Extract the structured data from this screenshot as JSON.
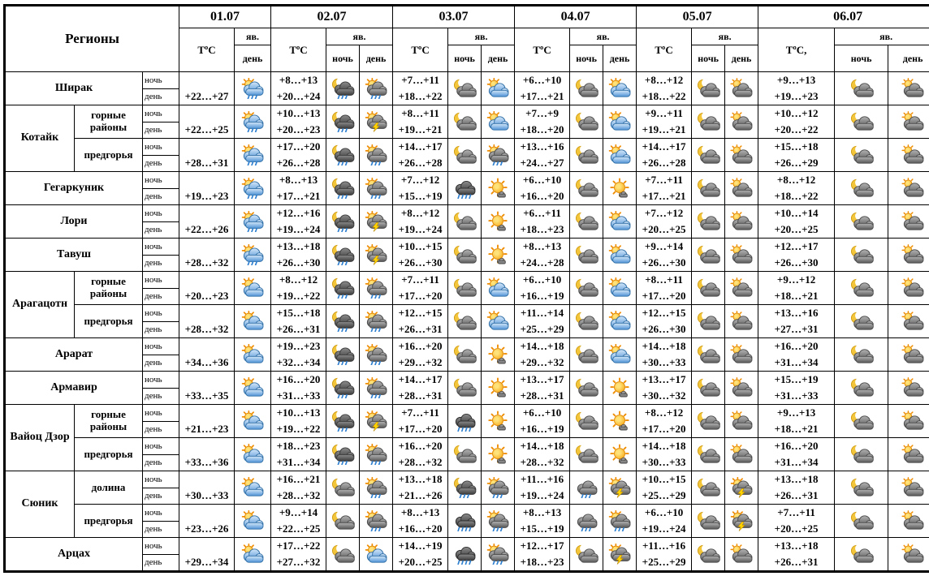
{
  "chart_data": {
    "type": "table",
    "cell_format": [
      "night_temp",
      "day_temp",
      "night_icon",
      "day_icon"
    ],
    "colors": {
      "border": "#000000",
      "background": "#ffffff",
      "sun": "#f59b00",
      "moon": "#f3c53a",
      "rain": "#2f80d0",
      "cloud_blue": "#4f93d6",
      "cloud_dark": "#585858",
      "lightning": "#ffd400"
    },
    "header": {
      "regions_label": "Регионы",
      "phen_label": "яв.",
      "night_label": "ночь",
      "day_label": "день",
      "dates": [
        {
          "label": "01.07",
          "temp_label": "ТºС",
          "night": false
        },
        {
          "label": "02.07",
          "temp_label": "ТºС",
          "night": true
        },
        {
          "label": "03.07",
          "temp_label": "ТºС",
          "night": true
        },
        {
          "label": "04.07",
          "temp_label": "ТºС",
          "night": true
        },
        {
          "label": "05.07",
          "temp_label": "ТºС",
          "night": true
        },
        {
          "label": "06.07",
          "temp_label": "ТºС,",
          "night": true
        }
      ]
    },
    "regions": [
      {
        "name": "Ширак",
        "rows": [
          {
            "sub": "",
            "cells": [
              [
                "",
                "+22…+27",
                "",
                "sun_cloud_rain"
              ],
              [
                "+8…+13",
                "+20…+24",
                "moon_cloud_rain",
                "sun_rain"
              ],
              [
                "+7…+11",
                "+18…+22",
                "moon_cloud",
                "sun_cloud"
              ],
              [
                "+6…+10",
                "+17…+21",
                "moon_cloud",
                "sun_cloud"
              ],
              [
                "+8…+12",
                "+18…+22",
                "moon_cloud",
                "cloud_sun"
              ],
              [
                "+9…+13",
                "+19…+23",
                "moon_cloud",
                "cloud_sun"
              ]
            ]
          }
        ]
      },
      {
        "name": "Котайк",
        "rows": [
          {
            "sub": "горные районы",
            "cells": [
              [
                "",
                "+22…+25",
                "",
                "sun_cloud_rain"
              ],
              [
                "+10…+13",
                "+20…+23",
                "moon_cloud_rain",
                "sun_storm"
              ],
              [
                "+8…+11",
                "+19…+21",
                "moon_cloud",
                "sun_cloud"
              ],
              [
                "+7…+9",
                "+18…+20",
                "moon_cloud",
                "sun_cloud"
              ],
              [
                "+9…+11",
                "+19…+21",
                "moon_cloud",
                "cloud_sun"
              ],
              [
                "+10…+12",
                "+20…+22",
                "moon_cloud",
                "cloud_sun"
              ]
            ]
          },
          {
            "sub": "предгорья",
            "cells": [
              [
                "",
                "+28…+31",
                "",
                "sun_cloud_rain"
              ],
              [
                "+17…+20",
                "+26…+28",
                "moon_cloud_rain",
                "sun_rain"
              ],
              [
                "+14…+17",
                "+26…+28",
                "moon_cloud",
                "sun_rain"
              ],
              [
                "+13…+16",
                "+24…+27",
                "moon_cloud",
                "sun_cloud"
              ],
              [
                "+14…+17",
                "+26…+28",
                "moon_cloud",
                "cloud_sun"
              ],
              [
                "+15…+18",
                "+26…+29",
                "moon_cloud",
                "cloud_sun"
              ]
            ]
          }
        ]
      },
      {
        "name": "Гегаркуник",
        "rows": [
          {
            "sub": "",
            "cells": [
              [
                "",
                "+19…+23",
                "",
                "sun_cloud_rain"
              ],
              [
                "+8…+13",
                "+17…+21",
                "moon_cloud_rain",
                "sun_rain"
              ],
              [
                "+7…+12",
                "+15…+19",
                "rain_dark",
                "sun"
              ],
              [
                "+6…+10",
                "+16…+20",
                "moon_cloud",
                "sun"
              ],
              [
                "+7…+11",
                "+17…+21",
                "moon_cloud",
                "cloud_sun"
              ],
              [
                "+8…+12",
                "+18…+22",
                "moon_cloud",
                "cloud_sun"
              ]
            ]
          }
        ]
      },
      {
        "name": "Лори",
        "rows": [
          {
            "sub": "",
            "cells": [
              [
                "",
                "+22…+26",
                "",
                "sun_cloud_rain"
              ],
              [
                "+12…+16",
                "+19…+24",
                "moon_cloud_rain",
                "sun_storm"
              ],
              [
                "+8…+12",
                "+19…+24",
                "moon_cloud",
                "sun"
              ],
              [
                "+6…+11",
                "+18…+23",
                "moon_cloud",
                "sun_cloud"
              ],
              [
                "+7…+12",
                "+20…+25",
                "moon_cloud",
                "cloud_sun"
              ],
              [
                "+10…+14",
                "+20…+25",
                "moon_cloud",
                "cloud_sun"
              ]
            ]
          }
        ]
      },
      {
        "name": "Тавуш",
        "rows": [
          {
            "sub": "",
            "cells": [
              [
                "",
                "+28…+32",
                "",
                "sun_cloud_rain"
              ],
              [
                "+13…+18",
                "+26…+30",
                "moon_cloud_rain",
                "sun_storm"
              ],
              [
                "+10…+15",
                "+26…+30",
                "moon_cloud",
                "sun"
              ],
              [
                "+8…+13",
                "+24…+28",
                "moon_cloud",
                "sun_cloud"
              ],
              [
                "+9…+14",
                "+26…+30",
                "moon_cloud",
                "cloud_sun"
              ],
              [
                "+12…+17",
                "+26…+30",
                "moon_cloud",
                "cloud_sun"
              ]
            ]
          }
        ]
      },
      {
        "name": "Арагацотн",
        "rows": [
          {
            "sub": "горные районы",
            "cells": [
              [
                "",
                "+20…+23",
                "",
                "sun_cloud"
              ],
              [
                "+8…+12",
                "+19…+22",
                "moon_cloud_rain",
                "sun_rain"
              ],
              [
                "+7…+11",
                "+17…+20",
                "moon_cloud",
                "sun_cloud"
              ],
              [
                "+6…+10",
                "+16…+19",
                "moon_cloud",
                "sun_cloud"
              ],
              [
                "+8…+11",
                "+17…+20",
                "moon_cloud",
                "cloud_sun"
              ],
              [
                "+9…+12",
                "+18…+21",
                "moon_cloud",
                "cloud_sun"
              ]
            ]
          },
          {
            "sub": "предгорья",
            "cells": [
              [
                "",
                "+28…+32",
                "",
                "sun_cloud"
              ],
              [
                "+15…+18",
                "+26…+31",
                "moon_cloud_rain",
                "sun_rain"
              ],
              [
                "+12…+15",
                "+26…+31",
                "moon_cloud",
                "sun_cloud"
              ],
              [
                "+11…+14",
                "+25…+29",
                "moon_cloud",
                "sun_cloud"
              ],
              [
                "+12…+15",
                "+26…+30",
                "moon_cloud",
                "cloud_sun"
              ],
              [
                "+13…+16",
                "+27…+31",
                "moon_cloud",
                "cloud_sun"
              ]
            ]
          }
        ]
      },
      {
        "name": "Арарат",
        "rows": [
          {
            "sub": "",
            "cells": [
              [
                "",
                "+34…+36",
                "",
                "sun_cloud"
              ],
              [
                "+19…+23",
                "+32…+34",
                "moon_cloud_rain",
                "sun_rain"
              ],
              [
                "+16…+20",
                "+29…+32",
                "moon_cloud",
                "sun"
              ],
              [
                "+14…+18",
                "+29…+32",
                "moon_cloud",
                "sun_cloud"
              ],
              [
                "+14…+18",
                "+30…+33",
                "moon_cloud",
                "cloud_sun"
              ],
              [
                "+16…+20",
                "+31…+34",
                "moon_cloud",
                "cloud_sun"
              ]
            ]
          }
        ]
      },
      {
        "name": "Армавир",
        "rows": [
          {
            "sub": "",
            "cells": [
              [
                "",
                "+33…+35",
                "",
                "sun_cloud"
              ],
              [
                "+16…+20",
                "+31…+33",
                "moon_cloud_rain",
                "sun_rain"
              ],
              [
                "+14…+17",
                "+28…+31",
                "moon_cloud",
                "sun"
              ],
              [
                "+13…+17",
                "+28…+31",
                "moon_cloud",
                "sun"
              ],
              [
                "+13…+17",
                "+30…+32",
                "moon_cloud",
                "cloud_sun"
              ],
              [
                "+15…+19",
                "+31…+33",
                "moon_cloud",
                "cloud_sun"
              ]
            ]
          }
        ]
      },
      {
        "name": "Вайоц Дзор",
        "rows": [
          {
            "sub": "горные районы",
            "cells": [
              [
                "",
                "+21…+23",
                "",
                "sun_cloud"
              ],
              [
                "+10…+13",
                "+19…+22",
                "moon_cloud_rain",
                "sun_storm"
              ],
              [
                "+7…+11",
                "+17…+20",
                "rain_dark",
                "sun"
              ],
              [
                "+6…+10",
                "+16…+19",
                "moon_cloud",
                "sun"
              ],
              [
                "+8…+12",
                "+17…+20",
                "moon_cloud",
                "cloud_sun"
              ],
              [
                "+9…+13",
                "+18…+21",
                "moon_cloud",
                "cloud_sun"
              ]
            ]
          },
          {
            "sub": "предгорья",
            "cells": [
              [
                "",
                "+33…+36",
                "",
                "sun_cloud"
              ],
              [
                "+18…+23",
                "+31…+34",
                "moon_cloud_rain",
                "sun_rain"
              ],
              [
                "+16…+20",
                "+28…+32",
                "moon_cloud",
                "sun"
              ],
              [
                "+14…+18",
                "+28…+32",
                "moon_cloud",
                "sun"
              ],
              [
                "+14…+18",
                "+30…+33",
                "moon_cloud",
                "cloud_sun"
              ],
              [
                "+16…+20",
                "+31…+34",
                "moon_cloud",
                "cloud_sun"
              ]
            ]
          }
        ]
      },
      {
        "name": "Сюник",
        "rows": [
          {
            "sub": "долина",
            "cells": [
              [
                "",
                "+30…+33",
                "",
                "sun_cloud"
              ],
              [
                "+16…+21",
                "+28…+32",
                "moon_cloud",
                "sun_rain"
              ],
              [
                "+13…+18",
                "+21…+26",
                "moon_cloud_rain",
                "sun_rain"
              ],
              [
                "+11…+16",
                "+19…+24",
                "cloud_rain",
                "sun_storm"
              ],
              [
                "+10…+15",
                "+25…+29",
                "moon_cloud",
                "sun_storm"
              ],
              [
                "+13…+18",
                "+26…+31",
                "moon_cloud",
                "cloud_sun"
              ]
            ]
          },
          {
            "sub": "предгорья",
            "cells": [
              [
                "",
                "+23…+26",
                "",
                "sun_cloud"
              ],
              [
                "+9…+14",
                "+22…+25",
                "moon_cloud",
                "sun_rain"
              ],
              [
                "+8…+13",
                "+16…+20",
                "rain_dark",
                "sun_rain"
              ],
              [
                "+8…+13",
                "+15…+19",
                "cloud_rain",
                "sun_rain"
              ],
              [
                "+6…+10",
                "+19…+24",
                "moon_cloud",
                "sun_storm"
              ],
              [
                "+7…+11",
                "+20…+25",
                "moon_cloud",
                "cloud_sun"
              ]
            ]
          }
        ]
      },
      {
        "name": "Арцах",
        "rows": [
          {
            "sub": "",
            "cells": [
              [
                "",
                "+29…+34",
                "",
                "sun_cloud"
              ],
              [
                "+17…+22",
                "+27…+32",
                "moon_cloud",
                "sun_cloud"
              ],
              [
                "+14…+19",
                "+20…+25",
                "rain_dark",
                "sun_rain"
              ],
              [
                "+12…+17",
                "+18…+23",
                "moon_cloud",
                "sun_storm"
              ],
              [
                "+11…+16",
                "+25…+29",
                "moon_cloud",
                "cloud_sun"
              ],
              [
                "+13…+18",
                "+26…+31",
                "moon_cloud",
                "cloud_sun"
              ]
            ]
          }
        ]
      }
    ]
  }
}
